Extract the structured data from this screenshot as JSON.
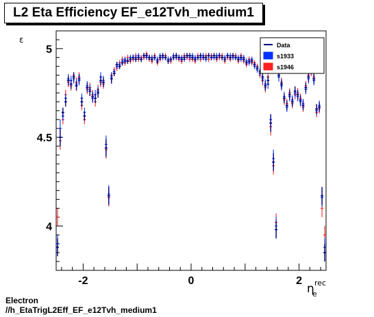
{
  "title": "L2 Eta Efficiency EF_e12Tvh_medium1",
  "footer": {
    "line1": "Electron",
    "line2": "//h_EtaTrigL2Eff_EF_e12Tvh_medium1"
  },
  "colors": {
    "data": "#000080",
    "s1933": "#0033ff",
    "s1946": "#ff2020"
  },
  "chart_data": {
    "type": "scatter",
    "ylabel": "ε",
    "xlabel_main": "η",
    "xlabel_sup": "rec",
    "xlabel_sub": "e",
    "xlim": [
      -2.5,
      2.5
    ],
    "ylim": [
      3.75,
      5.1
    ],
    "xticks": [
      -2,
      0,
      2
    ],
    "xtick_labels": [
      "-2",
      "0",
      "2"
    ],
    "yticks": [
      4,
      4.5,
      5
    ],
    "ytick_labels": [
      "4",
      "4.5",
      "5"
    ],
    "legend_position": "top-right",
    "legend": [
      {
        "label": "Data",
        "style": "line"
      },
      {
        "label": "s1933",
        "style": "box"
      },
      {
        "label": "s1946",
        "style": "box"
      }
    ],
    "x": [
      -2.475,
      -2.425,
      -2.375,
      -2.325,
      -2.275,
      -2.225,
      -2.175,
      -2.125,
      -2.075,
      -2.025,
      -1.975,
      -1.925,
      -1.875,
      -1.825,
      -1.775,
      -1.725,
      -1.675,
      -1.625,
      -1.575,
      -1.525,
      -1.475,
      -1.425,
      -1.375,
      -1.325,
      -1.275,
      -1.225,
      -1.175,
      -1.125,
      -1.075,
      -1.025,
      -0.975,
      -0.925,
      -0.875,
      -0.825,
      -0.775,
      -0.725,
      -0.675,
      -0.625,
      -0.575,
      -0.525,
      -0.475,
      -0.425,
      -0.375,
      -0.325,
      -0.275,
      -0.225,
      -0.175,
      -0.125,
      -0.075,
      -0.025,
      0.025,
      0.075,
      0.125,
      0.175,
      0.225,
      0.275,
      0.325,
      0.375,
      0.425,
      0.475,
      0.525,
      0.575,
      0.625,
      0.675,
      0.725,
      0.775,
      0.825,
      0.875,
      0.925,
      0.975,
      1.025,
      1.075,
      1.125,
      1.175,
      1.225,
      1.275,
      1.325,
      1.375,
      1.425,
      1.475,
      1.525,
      1.575,
      1.625,
      1.675,
      1.725,
      1.775,
      1.825,
      1.875,
      1.925,
      1.975,
      2.025,
      2.075,
      2.125,
      2.175,
      2.225,
      2.275,
      2.325,
      2.375,
      2.425,
      2.475
    ],
    "series": [
      {
        "name": "Data",
        "values": [
          3.88,
          4.5,
          4.64,
          4.7,
          4.82,
          4.8,
          4.84,
          4.79,
          4.83,
          4.7,
          4.62,
          4.78,
          4.76,
          4.73,
          4.72,
          4.75,
          4.82,
          4.81,
          4.44,
          4.17,
          4.83,
          4.86,
          4.91,
          4.9,
          4.92,
          4.93,
          4.93,
          4.94,
          4.95,
          4.94,
          4.95,
          4.94,
          4.96,
          4.96,
          4.95,
          4.94,
          4.95,
          4.93,
          4.95,
          4.96,
          4.95,
          4.93,
          4.94,
          4.95,
          4.96,
          4.95,
          4.94,
          4.95,
          4.96,
          4.96,
          4.95,
          4.94,
          4.95,
          4.96,
          4.95,
          4.95,
          4.96,
          4.95,
          4.96,
          4.95,
          4.96,
          4.95,
          4.94,
          4.96,
          4.95,
          4.96,
          4.95,
          4.94,
          4.95,
          4.94,
          4.92,
          4.93,
          4.93,
          4.91,
          4.89,
          4.87,
          4.84,
          4.79,
          4.82,
          4.58,
          4.36,
          3.98,
          4.85,
          4.8,
          4.72,
          4.68,
          4.74,
          4.7,
          4.76,
          4.74,
          4.71,
          4.68,
          4.78,
          4.84,
          4.88,
          4.83,
          4.66,
          4.67,
          4.17,
          3.85
        ]
      },
      {
        "name": "s1933",
        "values": [
          3.9,
          4.55,
          4.62,
          4.72,
          4.83,
          4.82,
          4.83,
          4.8,
          4.82,
          4.72,
          4.64,
          4.79,
          4.77,
          4.72,
          4.74,
          4.76,
          4.84,
          4.82,
          4.46,
          4.18,
          4.84,
          4.87,
          4.9,
          4.91,
          4.93,
          4.94,
          4.93,
          4.95,
          4.95,
          4.95,
          4.96,
          4.94,
          4.96,
          4.95,
          4.95,
          4.95,
          4.95,
          4.94,
          4.96,
          4.95,
          4.95,
          4.94,
          4.94,
          4.96,
          4.95,
          4.95,
          4.95,
          4.94,
          4.96,
          4.95,
          4.96,
          4.95,
          4.95,
          4.95,
          4.96,
          4.94,
          4.96,
          4.95,
          4.95,
          4.96,
          4.96,
          4.95,
          4.95,
          4.96,
          4.96,
          4.95,
          4.95,
          4.95,
          4.94,
          4.95,
          4.93,
          4.92,
          4.94,
          4.9,
          4.88,
          4.86,
          4.83,
          4.8,
          4.8,
          4.6,
          4.38,
          4.0,
          4.84,
          4.79,
          4.73,
          4.67,
          4.73,
          4.71,
          4.75,
          4.73,
          4.7,
          4.69,
          4.77,
          4.83,
          4.87,
          4.82,
          4.65,
          4.68,
          4.16,
          3.88
        ]
      },
      {
        "name": "s1946",
        "values": [
          4.05,
          4.48,
          4.6,
          4.74,
          4.81,
          4.79,
          4.85,
          4.81,
          4.84,
          4.68,
          4.6,
          4.77,
          4.78,
          4.74,
          4.7,
          4.77,
          4.81,
          4.8,
          4.43,
          4.16,
          4.85,
          4.88,
          4.89,
          4.92,
          4.94,
          4.92,
          4.95,
          4.93,
          4.94,
          4.96,
          4.94,
          4.95,
          4.95,
          4.97,
          4.94,
          4.93,
          4.96,
          4.92,
          4.94,
          4.95,
          4.96,
          4.94,
          4.93,
          4.96,
          4.95,
          4.94,
          4.93,
          4.96,
          4.95,
          4.94,
          4.94,
          4.93,
          4.96,
          4.94,
          4.95,
          4.96,
          4.94,
          4.96,
          4.95,
          4.94,
          4.95,
          4.96,
          4.93,
          4.95,
          4.94,
          4.95,
          4.96,
          4.93,
          4.96,
          4.93,
          4.91,
          4.94,
          4.92,
          4.92,
          4.9,
          4.85,
          4.82,
          4.78,
          4.84,
          4.56,
          4.34,
          4.02,
          4.86,
          4.81,
          4.71,
          4.69,
          4.75,
          4.69,
          4.74,
          4.75,
          4.72,
          4.67,
          4.79,
          4.85,
          4.86,
          4.84,
          4.64,
          4.66,
          4.1,
          3.95
        ]
      }
    ]
  }
}
